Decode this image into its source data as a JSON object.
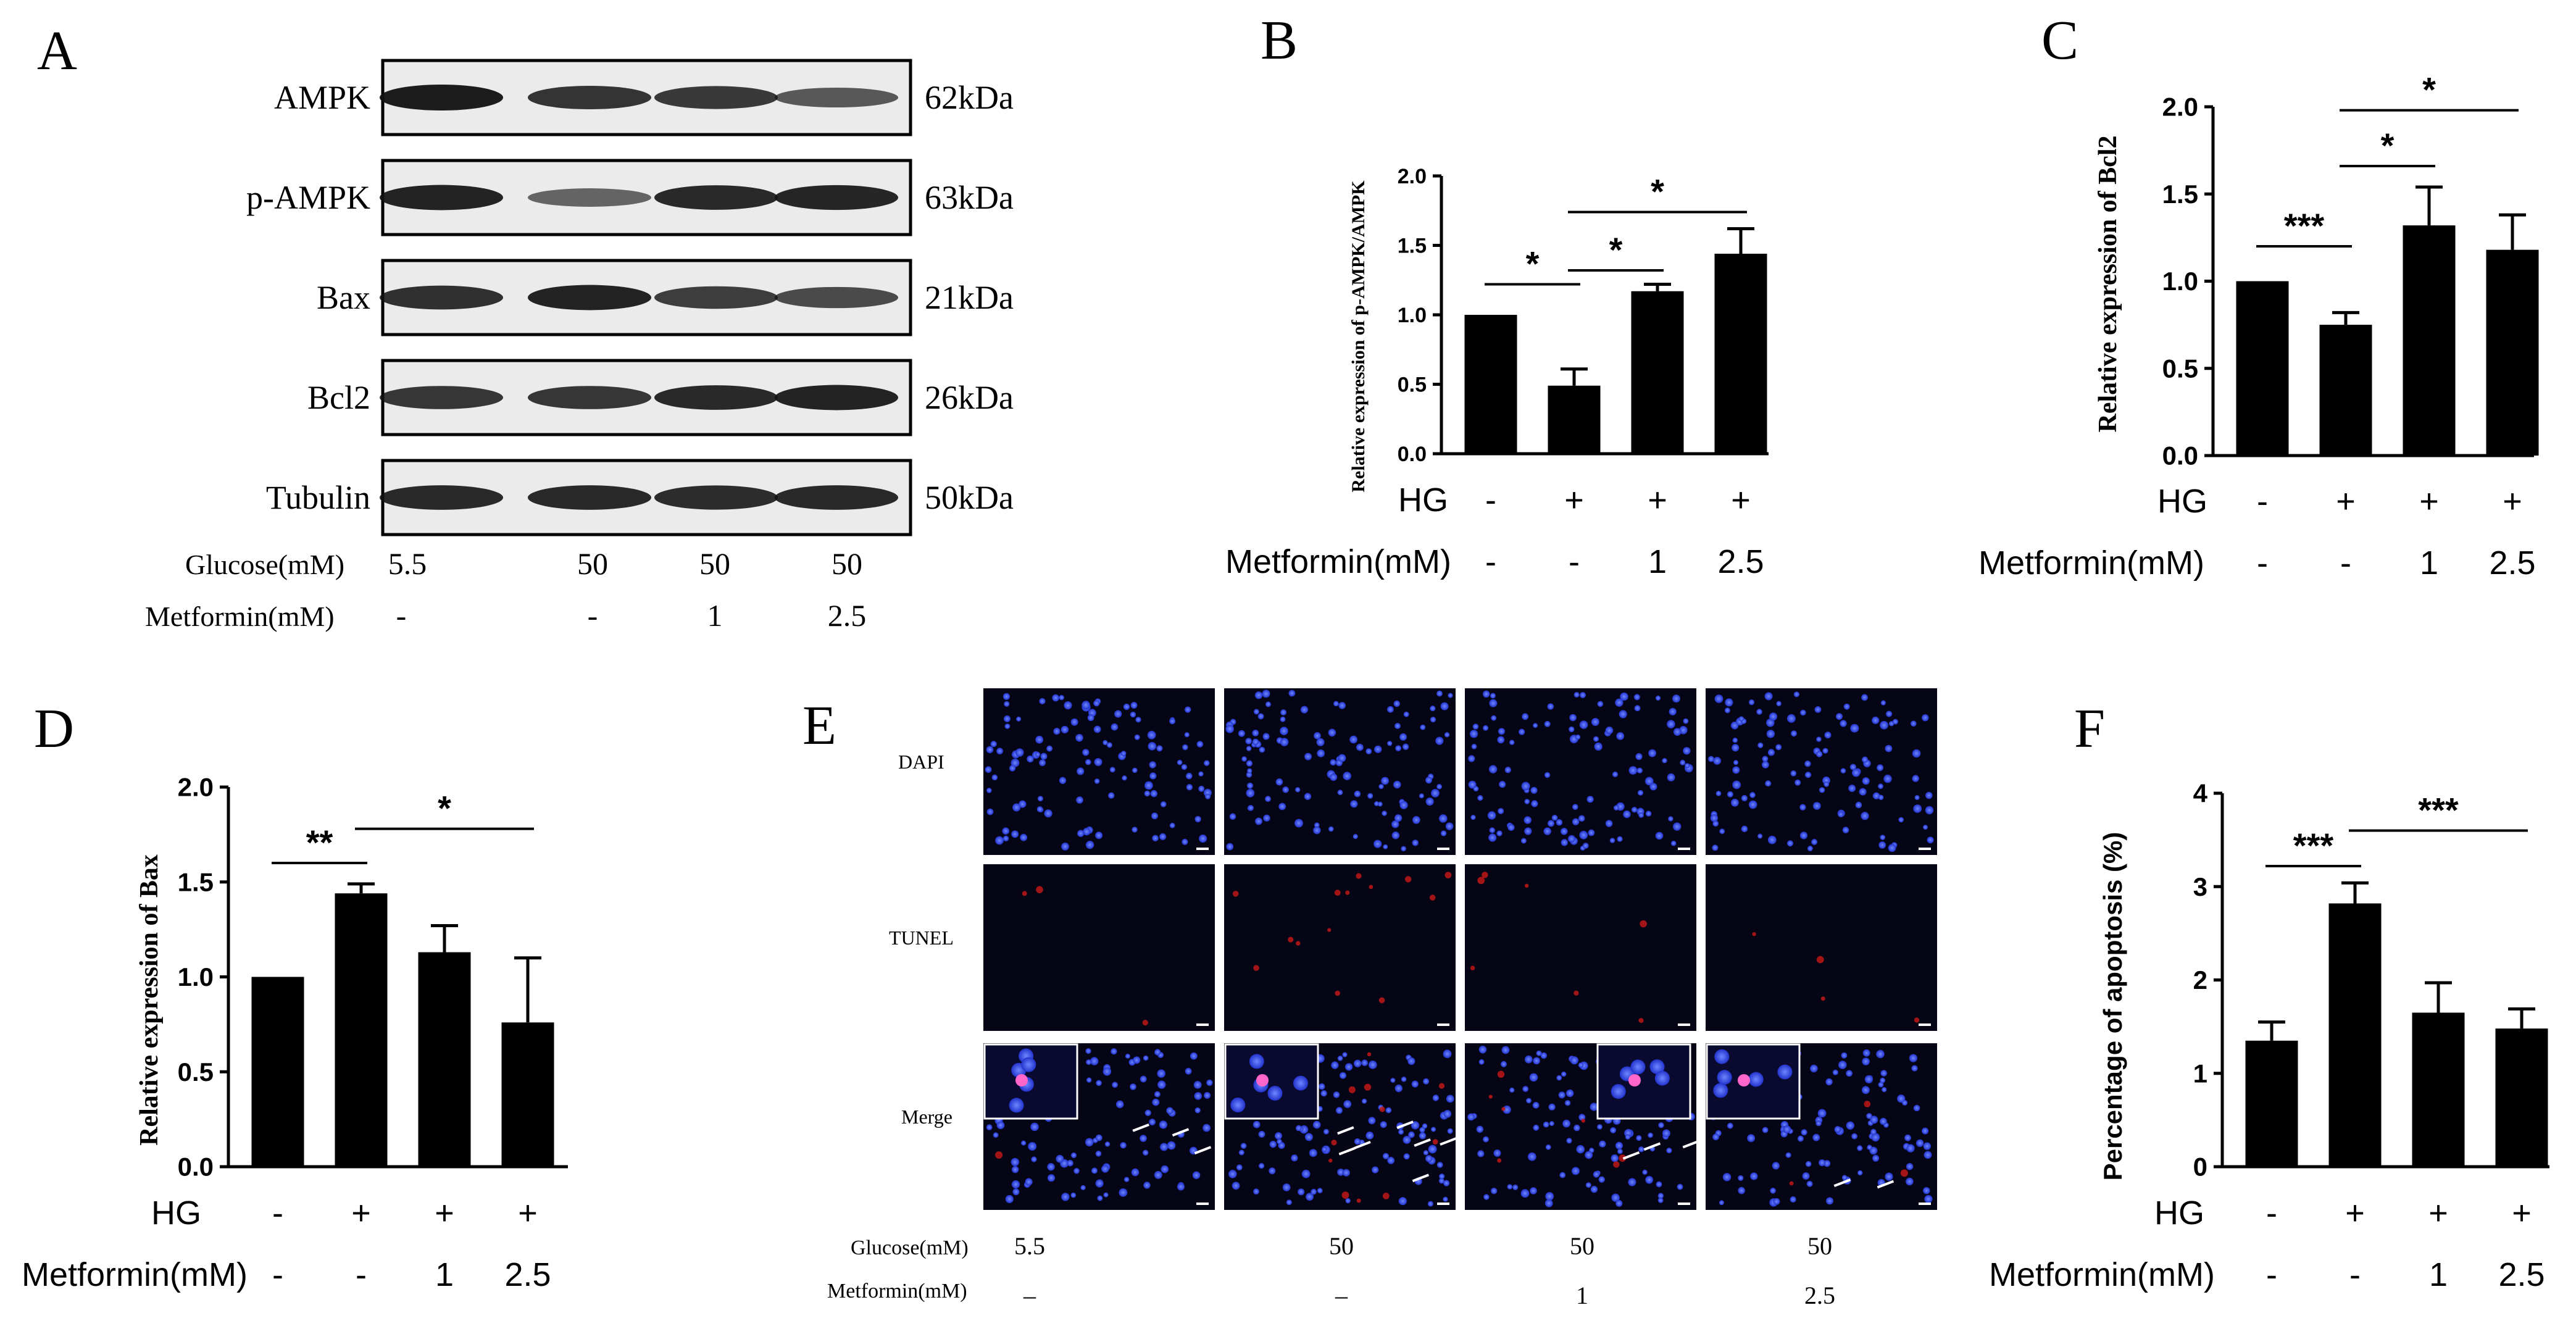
{
  "panels": {
    "A": {
      "letter": "A",
      "blots": [
        {
          "protein": "AMPK",
          "size": "62kDa",
          "intensity": [
            1.0,
            0.82,
            0.78,
            0.55
          ]
        },
        {
          "protein": "p-AMPK",
          "size": "63kDa",
          "intensity": [
            0.95,
            0.45,
            0.9,
            0.92
          ]
        },
        {
          "protein": "Bax",
          "size": "21kDa",
          "intensity": [
            0.85,
            0.95,
            0.75,
            0.65
          ]
        },
        {
          "protein": "Bcl2",
          "size": "26kDa",
          "intensity": [
            0.8,
            0.8,
            0.9,
            0.95
          ]
        },
        {
          "protein": "Tubulin",
          "size": "50kDa",
          "intensity": [
            0.9,
            0.9,
            0.88,
            0.9
          ]
        }
      ],
      "row_glucose_label": "Glucose(mM)",
      "glucose": [
        "5.5",
        "50",
        "50",
        "50"
      ],
      "row_metformin_label": "Metformin(mM)",
      "metformin": [
        "-",
        "-",
        "1",
        "2.5"
      ]
    },
    "E": {
      "letter": "E",
      "row_labels": [
        "DAPI",
        "TUNEL",
        "Merge"
      ],
      "row_glucose_label": "Glucose(mM)",
      "glucose": [
        "5.5",
        "50",
        "50",
        "50"
      ],
      "row_metformin_label": "Metformin(mM)",
      "metformin": [
        "–",
        "–",
        "1",
        "2.5"
      ]
    }
  },
  "chart_data": [
    {
      "id": "B",
      "letter": "B",
      "type": "bar",
      "ylabel": "Relative expression of  p-AMPK/AMPK",
      "ylim": [
        0,
        2.0
      ],
      "yticks": [
        "0.0",
        "0.5",
        "1.0",
        "1.5",
        "2.0"
      ],
      "values": [
        1.0,
        0.49,
        1.17,
        1.44
      ],
      "errors": [
        0.0,
        0.12,
        0.05,
        0.18
      ],
      "hg_label": "HG",
      "hg": [
        "-",
        "+",
        "+",
        "+"
      ],
      "met_label": "Metformin(mM)",
      "met": [
        "-",
        "-",
        "1",
        "2.5"
      ],
      "sig": [
        {
          "from": 0,
          "to": 1,
          "label": "*",
          "y": 1.22
        },
        {
          "from": 1,
          "to": 2,
          "label": "*",
          "y": 1.32
        },
        {
          "from": 1,
          "to": 3,
          "label": "*",
          "y": 1.74
        }
      ]
    },
    {
      "id": "C",
      "letter": "C",
      "type": "bar",
      "ylabel": "Relative expression of  Bcl2",
      "ylim": [
        0,
        2.0
      ],
      "yticks": [
        "0.0",
        "0.5",
        "1.0",
        "1.5",
        "2.0"
      ],
      "values": [
        1.0,
        0.75,
        1.32,
        1.18
      ],
      "errors": [
        0.0,
        0.07,
        0.22,
        0.2
      ],
      "hg_label": "HG",
      "hg": [
        "-",
        "+",
        "+",
        "+"
      ],
      "met_label": "Metformin(mM)",
      "met": [
        "-",
        "-",
        "1",
        "2.5"
      ],
      "sig": [
        {
          "from": 0,
          "to": 1,
          "label": "***",
          "y": 1.2
        },
        {
          "from": 1,
          "to": 2,
          "label": "*",
          "y": 1.66
        },
        {
          "from": 1,
          "to": 3,
          "label": "*",
          "y": 1.98
        }
      ]
    },
    {
      "id": "D",
      "letter": "D",
      "type": "bar",
      "ylabel": "Relative expression of  Bax",
      "ylim": [
        0,
        2.0
      ],
      "yticks": [
        "0.0",
        "0.5",
        "1.0",
        "1.5",
        "2.0"
      ],
      "values": [
        1.0,
        1.44,
        1.13,
        0.76
      ],
      "errors": [
        0.0,
        0.05,
        0.14,
        0.34
      ],
      "hg_label": "HG",
      "hg": [
        "-",
        "+",
        "+",
        "+"
      ],
      "met_label": "Metformin(mM)",
      "met": [
        "-",
        "-",
        "1",
        "2.5"
      ],
      "sig": [
        {
          "from": 0,
          "to": 1,
          "label": "**",
          "y": 1.6
        },
        {
          "from": 1,
          "to": 3,
          "label": "*",
          "y": 1.78
        }
      ]
    },
    {
      "id": "F",
      "letter": "F",
      "type": "bar",
      "ylabel": "Percentage of apoptosis (%)",
      "ylim": [
        0,
        4
      ],
      "yticks": [
        "0",
        "1",
        "2",
        "3",
        "4"
      ],
      "values": [
        1.35,
        2.82,
        1.65,
        1.48
      ],
      "errors": [
        0.2,
        0.22,
        0.32,
        0.21
      ],
      "hg_label": "HG",
      "hg": [
        "-",
        "+",
        "+",
        "+"
      ],
      "met_label": "Metformin(mM)",
      "met": [
        "-",
        "-",
        "1",
        "2.5"
      ],
      "sig": [
        {
          "from": 0,
          "to": 1,
          "label": "***",
          "y": 3.22
        },
        {
          "from": 1,
          "to": 3,
          "label": "***",
          "y": 3.6
        }
      ]
    }
  ]
}
